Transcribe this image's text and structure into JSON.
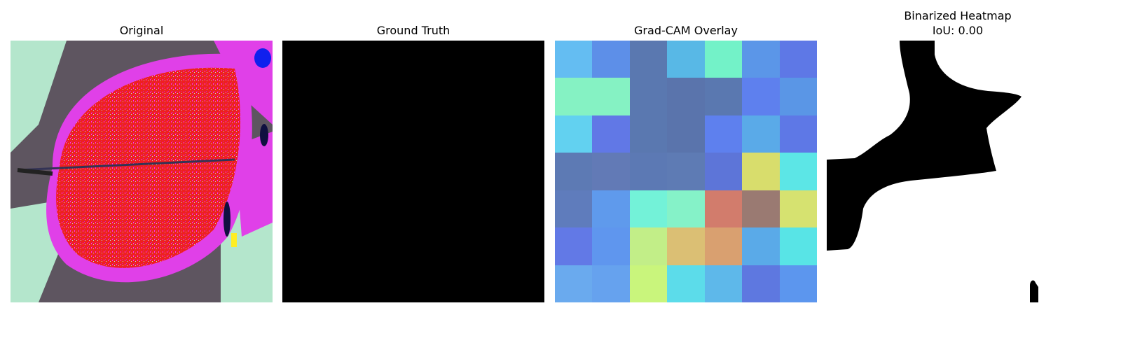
{
  "panels": {
    "original": {
      "title": "Original"
    },
    "ground_truth": {
      "title": "Ground Truth"
    },
    "gradcam": {
      "title": "Grad-CAM Overlay",
      "cells": [
        [
          "#64bdf2",
          "#5d8fe8",
          "#5a78b0",
          "#58b8e6",
          "#73f2c8",
          "#5b96e8",
          "#5e78e6"
        ],
        [
          "#85f2c3",
          "#85f2c3",
          "#5a78b0",
          "#5a74ac",
          "#5a78b0",
          "#5e80ee",
          "#5a96e6"
        ],
        [
          "#62d1f0",
          "#6178e6",
          "#5a78b0",
          "#5a74ac",
          "#5e80ee",
          "#5aaae8",
          "#5e78e6"
        ],
        [
          "#5d7ab4",
          "#627ab6",
          "#5c79b4",
          "#5e7bb4",
          "#5d75d8",
          "#d8dd6c",
          "#5ce6e6"
        ],
        [
          "#5f7cbc",
          "#5f9aec",
          "#73f2d8",
          "#85f2c8",
          "#d27c6c",
          "#9a7a72",
          "#d6e270"
        ],
        [
          "#6279e6",
          "#5f96ee",
          "#c2ee88",
          "#dbbf74",
          "#d9a070",
          "#5aaae8",
          "#58e4e6"
        ],
        [
          "#6aaaee",
          "#66a2ee",
          "#c9f57c",
          "#5cdcea",
          "#5eb8ea",
          "#5e78e0",
          "#5c96ee"
        ]
      ]
    },
    "binarized": {
      "title_line1": "Binarized Heatmap",
      "title_line2": "IoU: 0.00"
    }
  }
}
